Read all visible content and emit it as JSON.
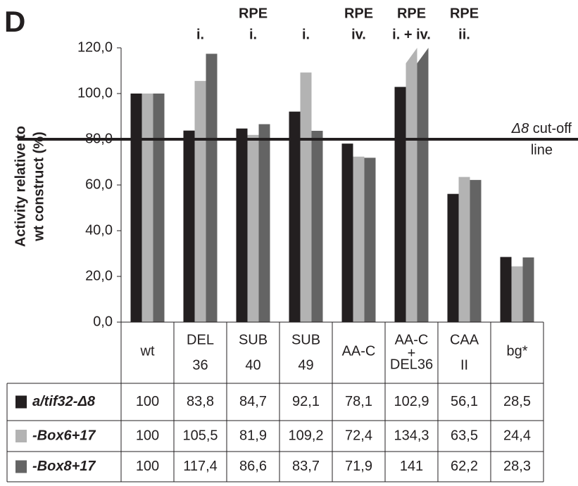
{
  "chart_data": {
    "type": "bar",
    "panel_label": "D",
    "ylabel": [
      "Activity relative to",
      "wt construct (%)"
    ],
    "categories": [
      [
        "wt"
      ],
      [
        "DEL",
        "36"
      ],
      [
        "SUB",
        "40"
      ],
      [
        "SUB",
        "49"
      ],
      [
        "AA-C"
      ],
      [
        "AA-C",
        "+",
        "DEL36"
      ],
      [
        "CAA",
        "II"
      ],
      [
        "bg*"
      ]
    ],
    "top_labels": [
      [],
      [
        "i."
      ],
      [
        "RPE",
        "i."
      ],
      [
        "i."
      ],
      [
        "RPE",
        "iv."
      ],
      [
        "RPE",
        "i. + iv."
      ],
      [
        "RPE",
        "ii."
      ],
      []
    ],
    "series": [
      {
        "name": "a/tif32-Δ8",
        "color": "#231f20",
        "values": [
          100,
          83.8,
          84.7,
          92.1,
          78.1,
          102.9,
          56.1,
          28.5
        ],
        "value_labels": [
          "100",
          "83,8",
          "84,7",
          "92,1",
          "78,1",
          "102,9",
          "56,1",
          "28,5"
        ]
      },
      {
        "name": "-Box6+17",
        "color": "#b3b3b3",
        "values": [
          100,
          105.5,
          81.9,
          109.2,
          72.4,
          134.3,
          63.5,
          24.4
        ],
        "value_labels": [
          "100",
          "105,5",
          "81,9",
          "109,2",
          "72,4",
          "134,3",
          "63,5",
          "24,4"
        ]
      },
      {
        "name": "-Box8+17",
        "color": "#646464",
        "values": [
          100,
          117.4,
          86.6,
          83.7,
          71.9,
          141,
          62.2,
          28.3
        ],
        "value_labels": [
          "100",
          "117,4",
          "86,6",
          "83,7",
          "71,9",
          "141",
          "62,2",
          "28,3"
        ]
      }
    ],
    "ylim": [
      0,
      120
    ],
    "yticks": [
      {
        "value": 0,
        "label": "0,0"
      },
      {
        "value": 20,
        "label": "20,0"
      },
      {
        "value": 40,
        "label": "40,0"
      },
      {
        "value": 60,
        "label": "60,0"
      },
      {
        "value": 80,
        "label": "80,0"
      },
      {
        "value": 100,
        "label": "100,0"
      },
      {
        "value": 120,
        "label": "120,0"
      }
    ],
    "cutoff": {
      "value": 80,
      "label_italic": "Δ8",
      "label": " cut-off",
      "label2": "line"
    }
  }
}
